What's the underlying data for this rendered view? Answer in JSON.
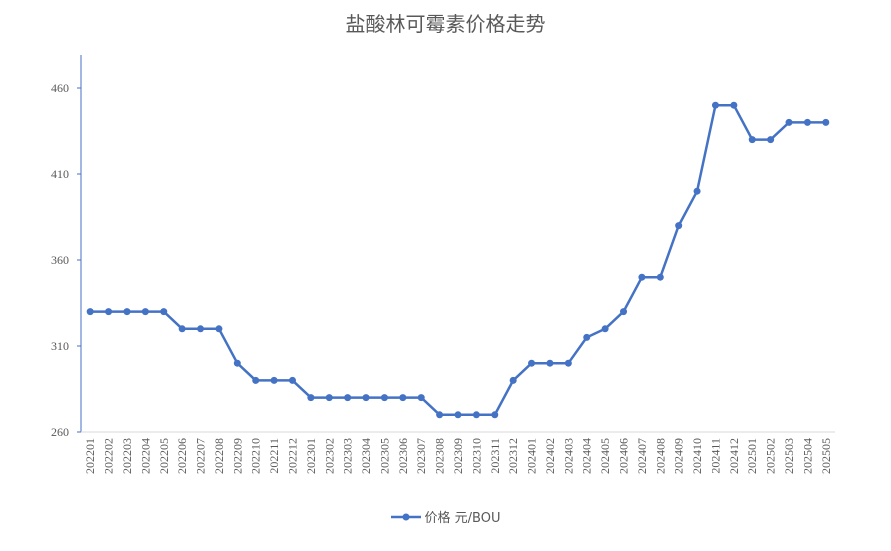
{
  "chart_data": {
    "type": "line",
    "title": "盐酸林可霉素价格走势",
    "xlabel": "",
    "ylabel": "",
    "ylim": [
      260,
      480
    ],
    "yticks": [
      260,
      310,
      360,
      410,
      460
    ],
    "grid": false,
    "legend_position": "bottom",
    "color": "#4472C4",
    "categories": [
      "202201",
      "202202",
      "202203",
      "202204",
      "202205",
      "202206",
      "202207",
      "202208",
      "202209",
      "202210",
      "202211",
      "202212",
      "202301",
      "202302",
      "202303",
      "202304",
      "202305",
      "202306",
      "202307",
      "202308",
      "202309",
      "202310",
      "202311",
      "202312",
      "202401",
      "202402",
      "202403",
      "202404",
      "202405",
      "202406",
      "202407",
      "202408",
      "202409",
      "202410",
      "202411",
      "202412",
      "202501",
      "202502",
      "202503",
      "202504",
      "202505"
    ],
    "series": [
      {
        "name": "价格 元/BOU",
        "values": [
          330,
          330,
          330,
          330,
          330,
          320,
          320,
          320,
          300,
          290,
          290,
          290,
          280,
          280,
          280,
          280,
          280,
          280,
          280,
          270,
          270,
          270,
          270,
          290,
          300,
          300,
          300,
          315,
          320,
          330,
          350,
          350,
          380,
          400,
          450,
          450,
          430,
          430,
          440,
          440,
          440
        ]
      }
    ]
  }
}
